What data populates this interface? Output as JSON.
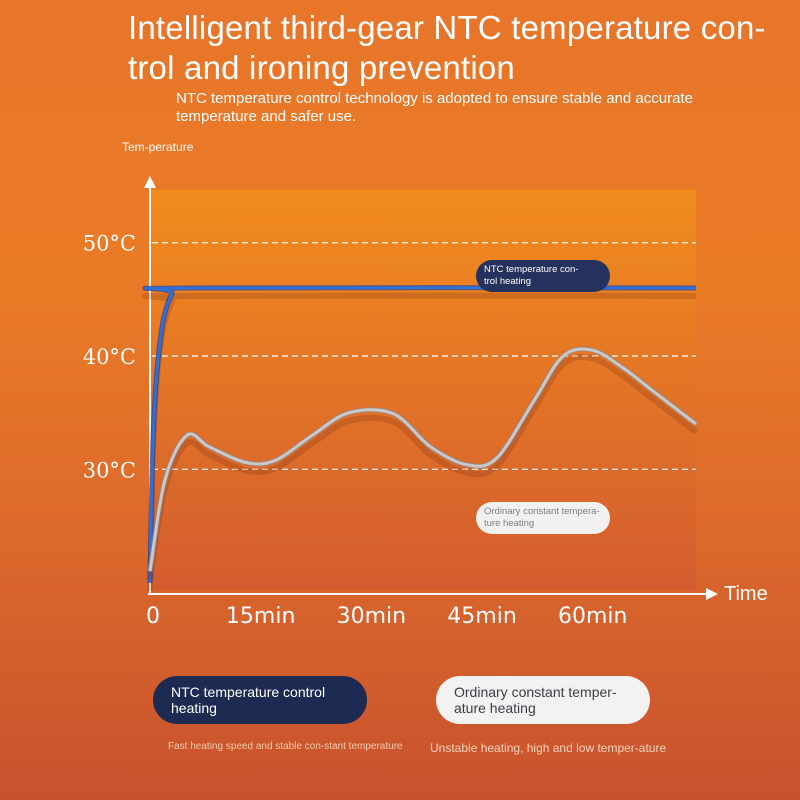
{
  "header": {
    "title": "Intelligent third-gear NTC temperature con-trol and ironing prevention",
    "subtitle": "NTC temperature control technology is adopted to ensure stable and accurate temperature and safer use."
  },
  "legend": {
    "ntc_label": "NTC temperature control heating",
    "ntc_desc": "Fast heating speed and stable con-stant temperature",
    "ordinary_label": "Ordinary constant temper-ature heating",
    "ordinary_desc": "Unstable heating, high and low temper-ature"
  },
  "chart_data": {
    "type": "line",
    "ylabel": "Tem-perature",
    "xlabel": "Time",
    "x_ticks": [
      "0",
      "15min",
      "30min",
      "45min",
      "60min"
    ],
    "y_ticks": [
      "50°C",
      "40°C",
      "30°C"
    ],
    "x_tick_values": [
      0,
      15,
      30,
      45,
      60
    ],
    "y_tick_values": [
      50,
      40,
      30
    ],
    "xlim": [
      0,
      74
    ],
    "ylim": [
      19,
      55
    ],
    "grid": "dashed horizontal lines at y ticks",
    "series": [
      {
        "name": "NTC temperature control heating",
        "color": "#2f6fd8",
        "x": [
          0,
          0.5,
          1.5,
          3,
          5,
          74
        ],
        "y": [
          20,
          34,
          42,
          45.5,
          46,
          46
        ]
      },
      {
        "name": "Ordinary constant temperature heating",
        "color": "#c9c9cc",
        "x": [
          0,
          2,
          5,
          8,
          13,
          17,
          22,
          27,
          33,
          38,
          43,
          47,
          52,
          56,
          60,
          64,
          68,
          72,
          74
        ],
        "y": [
          21,
          29,
          33,
          32,
          30.6,
          30.8,
          33,
          35,
          34.9,
          32,
          30.4,
          31,
          36,
          40,
          40.5,
          39,
          37,
          35,
          34
        ]
      }
    ],
    "callouts": {
      "ntc": "NTC temperature con-trol heating",
      "ordinary": "Ordinary constant tempera-ture heating"
    }
  }
}
